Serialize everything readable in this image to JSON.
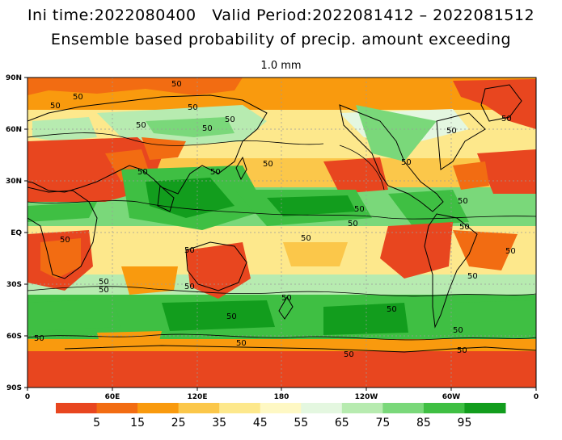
{
  "title_line1": "Ini time:2022080400   Valid Period:2022081412 – 2022081512",
  "title_line2": "Ensemble based probability of precip. amount exceeding",
  "title_line3": "1.0 mm",
  "lat_labels": [
    "90N",
    "60N",
    "30N",
    "EQ",
    "30S",
    "60S",
    "90S"
  ],
  "lon_labels": [
    "0",
    "60E",
    "120E",
    "180",
    "120W",
    "60W",
    "0"
  ],
  "contour_label": "50",
  "colorbar": {
    "colors": [
      "#e8461f",
      "#f26c12",
      "#f99a0e",
      "#fbc74a",
      "#fde88c",
      "#fef8c4",
      "#e4f7e0",
      "#b7ebb0",
      "#7ad87a",
      "#3fbf43",
      "#129d1d"
    ],
    "labels": [
      "5",
      "15",
      "25",
      "35",
      "45",
      "55",
      "65",
      "75",
      "85",
      "95"
    ]
  },
  "colors": {
    "ocean_low": "#e8461f",
    "land_outline": "#000000",
    "grid": "#9a9a9a"
  }
}
